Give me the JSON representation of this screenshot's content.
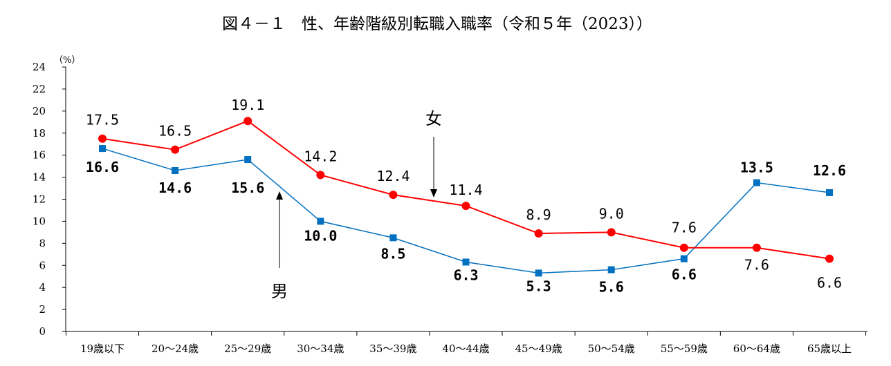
{
  "chart_data": {
    "type": "line",
    "title": "図４－１　性、年齢階級別転職入職率（令和５年（2023））",
    "y_unit": "（%）",
    "ylim": [
      0,
      24
    ],
    "y_ticks": [
      0,
      2,
      4,
      6,
      8,
      10,
      12,
      14,
      16,
      18,
      20,
      22,
      24
    ],
    "grid": false,
    "categories": [
      "19歳以下",
      "20～24歳",
      "25～29歳",
      "30～34歳",
      "35～39歳",
      "40～44歳",
      "45～49歳",
      "50～54歳",
      "55～59歳",
      "60～64歳",
      "65歳以上"
    ],
    "series": [
      {
        "name": "女",
        "color": "#ff0000",
        "marker": "circle",
        "values": [
          17.5,
          16.5,
          19.1,
          14.2,
          12.4,
          11.4,
          8.9,
          9.0,
          7.6,
          7.6,
          6.6
        ],
        "labels": [
          "17.5",
          "16.5",
          "19.1",
          "14.2",
          "12.4",
          "11.4",
          "8.9",
          "9.0",
          "7.6",
          "7.6",
          "6.6"
        ]
      },
      {
        "name": "男",
        "color": "#0070c0",
        "marker": "square",
        "values": [
          16.6,
          14.6,
          15.6,
          10.0,
          8.5,
          6.3,
          5.3,
          5.6,
          6.6,
          13.5,
          12.6
        ],
        "labels": [
          "16.6",
          "14.6",
          "15.6",
          "10.0",
          "8.5",
          "6.3",
          "5.3",
          "5.6",
          "6.6",
          "13.5",
          "12.6"
        ]
      }
    ]
  }
}
